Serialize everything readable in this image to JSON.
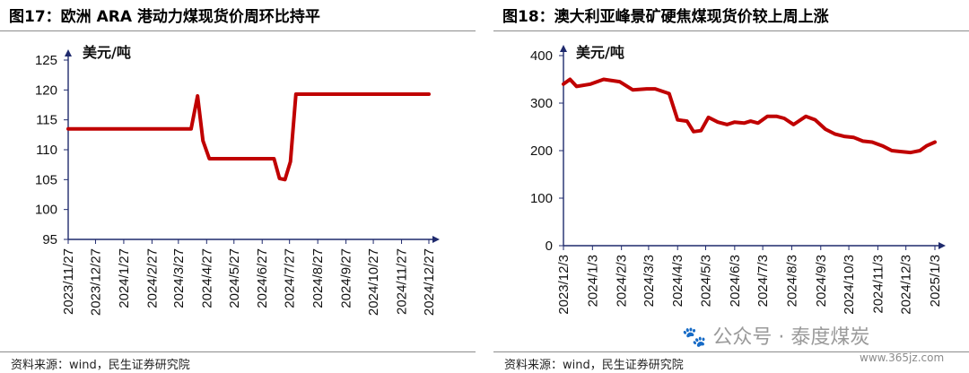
{
  "chart_data": [
    {
      "type": "line",
      "title": "图17：欧洲 ARA 港动力煤现货价周环比持平",
      "unit_label": "美元/吨",
      "source": "资料来源：wind，民生证券研究院",
      "ylim": [
        95,
        125
      ],
      "yticks": [
        "95",
        "100",
        "105",
        "110",
        "115",
        "120",
        "125"
      ],
      "xlim": [
        "2023-11-27",
        "2024-12-27"
      ],
      "xticks": [
        "2023/11/27",
        "2023/12/27",
        "2024/1/27",
        "2024/2/27",
        "2024/3/27",
        "2024/4/27",
        "2024/5/27",
        "2024/6/27",
        "2024/7/27",
        "2024/8/27",
        "2024/9/27",
        "2024/10/27",
        "2024/11/27",
        "2024/12/27"
      ],
      "color": "#c00000",
      "series": [
        {
          "x": [
            "2023-11-27",
            "2024-01-01",
            "2024-02-01",
            "2024-03-01",
            "2024-04-10",
            "2024-04-17",
            "2024-04-23",
            "2024-04-30",
            "2024-05-15",
            "2024-06-15",
            "2024-07-10",
            "2024-07-16",
            "2024-07-22",
            "2024-07-28",
            "2024-08-03",
            "2024-09-01",
            "2024-10-01",
            "2024-11-01",
            "2024-12-01",
            "2024-12-27"
          ],
          "y": [
            113.5,
            113.5,
            113.5,
            113.5,
            113.5,
            119.0,
            111.5,
            108.5,
            108.5,
            108.5,
            108.5,
            105.2,
            105.0,
            108.0,
            119.3,
            119.3,
            119.3,
            119.3,
            119.3,
            119.3
          ]
        }
      ]
    },
    {
      "type": "line",
      "title": "图18：澳大利亚峰景矿硬焦煤现货价较上周上涨",
      "unit_label": "美元/吨",
      "source": "资料来源：wind，民生证券研究院",
      "ylim": [
        0,
        400
      ],
      "yticks": [
        "0",
        "100",
        "200",
        "300",
        "400"
      ],
      "xlim": [
        "2023-12-03",
        "2025-01-03"
      ],
      "xticks": [
        "2023/12/3",
        "2024/1/3",
        "2024/2/3",
        "2024/3/3",
        "2024/4/3",
        "2024/5/3",
        "2024/6/3",
        "2024/7/3",
        "2024/8/3",
        "2024/9/3",
        "2024/10/3",
        "2024/11/3",
        "2024/12/3",
        "2025/1/3"
      ],
      "color": "#c00000",
      "series": [
        {
          "x": [
            "2023-12-03",
            "2023-12-10",
            "2023-12-17",
            "2024-01-01",
            "2024-01-15",
            "2024-02-01",
            "2024-02-15",
            "2024-03-01",
            "2024-03-10",
            "2024-03-25",
            "2024-04-03",
            "2024-04-13",
            "2024-04-20",
            "2024-04-28",
            "2024-05-06",
            "2024-05-16",
            "2024-05-26",
            "2024-06-03",
            "2024-06-13",
            "2024-06-20",
            "2024-06-28",
            "2024-07-08",
            "2024-07-18",
            "2024-07-26",
            "2024-08-05",
            "2024-08-18",
            "2024-08-28",
            "2024-09-08",
            "2024-09-18",
            "2024-09-28",
            "2024-10-08",
            "2024-10-18",
            "2024-10-28",
            "2024-11-08",
            "2024-11-18",
            "2024-11-28",
            "2024-12-08",
            "2024-12-18",
            "2024-12-25",
            "2025-01-03"
          ],
          "y": [
            340,
            350,
            335,
            340,
            350,
            345,
            328,
            330,
            330,
            320,
            265,
            262,
            240,
            242,
            270,
            260,
            255,
            260,
            258,
            262,
            258,
            272,
            272,
            268,
            255,
            272,
            265,
            245,
            235,
            230,
            228,
            220,
            218,
            210,
            200,
            198,
            196,
            200,
            210,
            218
          ]
        }
      ]
    }
  ],
  "watermark": {
    "text": "🐾 公众号 · 泰度煤炭",
    "url": "www.365jz.com"
  }
}
